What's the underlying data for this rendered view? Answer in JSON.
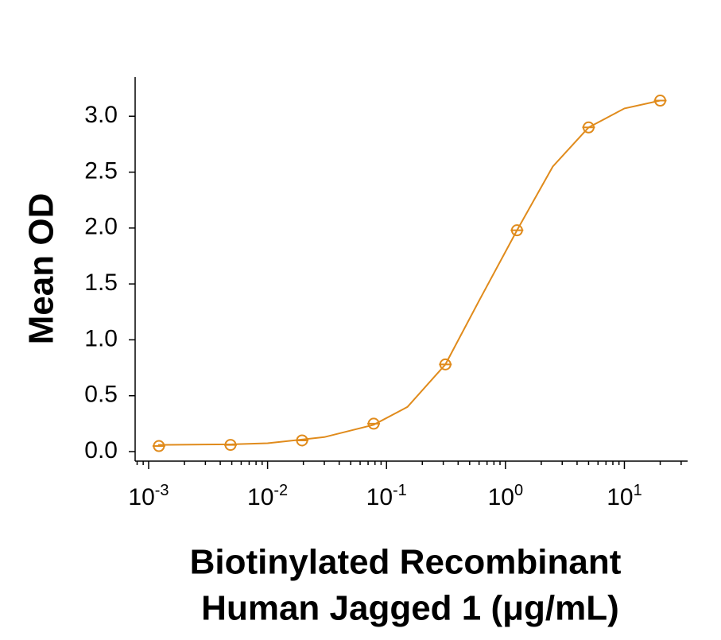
{
  "chart_data": {
    "type": "scatter",
    "y_label": "Mean OD",
    "x_label": [
      "Biotinylated Recombinant",
      "Human Jagged 1 (μg/mL)"
    ],
    "x_scale": "log",
    "minor_ticks": true,
    "color": "#e08b1c",
    "xlim": [
      0.00077,
      34
    ],
    "ylim": [
      -0.085,
      3.35
    ],
    "xticks": [
      {
        "value": 0.001,
        "label": "10",
        "power": "-3"
      },
      {
        "value": 0.01,
        "label": "10",
        "power": "-2"
      },
      {
        "value": 0.1,
        "label": "10",
        "power": "-1"
      },
      {
        "value": 1,
        "label": "10",
        "power": "0"
      },
      {
        "value": 10,
        "label": "10",
        "power": "1"
      }
    ],
    "yticks": [
      {
        "value": 0,
        "label": "0.0"
      },
      {
        "value": 0.5,
        "label": "0.5"
      },
      {
        "value": 1,
        "label": "1.0"
      },
      {
        "value": 1.5,
        "label": "1.5"
      },
      {
        "value": 2,
        "label": "2.0"
      },
      {
        "value": 2.5,
        "label": "2.5"
      },
      {
        "value": 3,
        "label": "3.0"
      }
    ],
    "points": {
      "x": [
        0.00122,
        0.00488,
        0.0195,
        0.078,
        0.3125,
        1.25,
        5,
        20
      ],
      "values": [
        0.05,
        0.06,
        0.1,
        0.25,
        0.78,
        1.98,
        2.9,
        3.14
      ]
    },
    "curve": {
      "x": [
        0.0012,
        0.005,
        0.01,
        0.03,
        0.078,
        0.15,
        0.3125,
        0.6,
        1.25,
        2.5,
        5,
        10,
        20
      ],
      "values": [
        0.06,
        0.065,
        0.075,
        0.13,
        0.24,
        0.4,
        0.78,
        1.35,
        1.98,
        2.55,
        2.9,
        3.07,
        3.14
      ]
    }
  }
}
